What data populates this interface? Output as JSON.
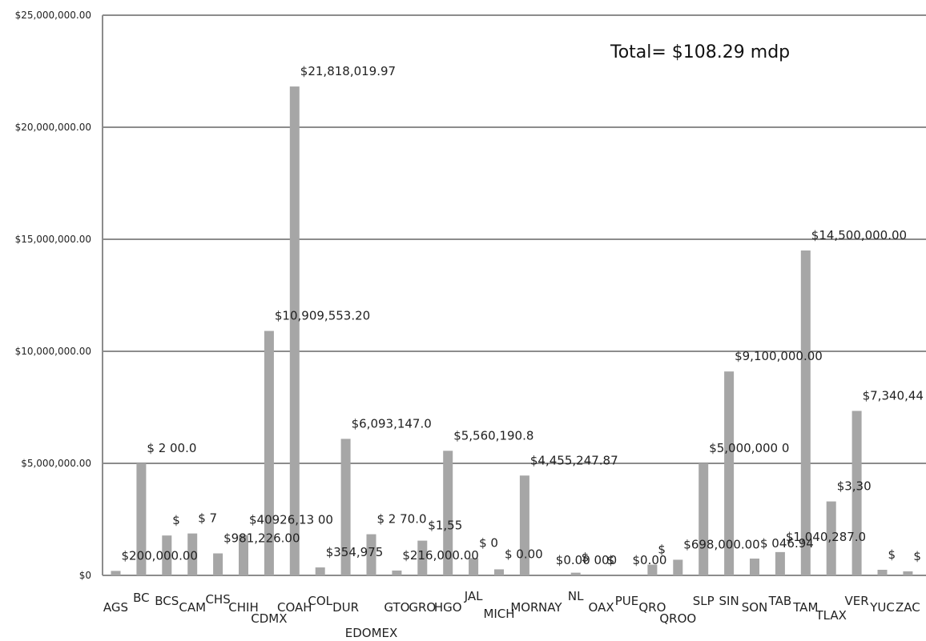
{
  "chart_data": {
    "type": "bar",
    "title": "",
    "xlabel": "",
    "ylabel": "",
    "annotation": "Total= $108.29 mdp",
    "ylim": [
      0,
      25000000
    ],
    "grid": true,
    "y_tick_labels": [
      "$0",
      "$5,000,000.00",
      "$10,000,000.00",
      "$15,000,000.00",
      "$20,000,000.00",
      "$25,000,000.00"
    ],
    "categories": [
      "AGS",
      "BC",
      "BCS",
      "CAM",
      "CHS",
      "CHIH",
      "CDMX",
      "COAH",
      "COL",
      "DUR",
      "EDOMEX",
      "GTO",
      "GRO",
      "HGO",
      "JAL",
      "MICH",
      "MOR",
      "NAY",
      "NL",
      "OAX",
      "PUE",
      "QRO",
      "QROO",
      "SLP",
      "SIN",
      "SON",
      "TAB",
      "TAM",
      "TLAX",
      "VER",
      "YUC",
      "ZAC"
    ],
    "values": [
      200000,
      5000000,
      1780000,
      1870000,
      981226,
      1800000,
      10909553.2,
      21818019.97,
      354975,
      6093147.0,
      1836000,
      216000,
      1550000,
      5560190.8,
      770000,
      270000,
      4455247.87,
      0,
      120000,
      0,
      0,
      480000,
      698000,
      5000000,
      9100000,
      750000,
      1040287.0,
      14500000,
      3300000,
      7340440,
      250000,
      180000
    ],
    "data_labels": [
      {
        "text": "$200,000.00"
      },
      {
        "text": "$ 2 00.0"
      },
      {
        "text": "$"
      },
      {
        "text": "$ 7"
      },
      {
        "text": "$981,226.00"
      },
      {
        "text": "$40926,13 00"
      },
      {
        "text": "$10,909,553.20"
      },
      {
        "text": "$21,818,019.97"
      },
      {
        "text": "$354,975"
      },
      {
        "text": "$6,093,147.0"
      },
      {
        "text": "$ 2 70.0"
      },
      {
        "text": "$216,000.00"
      },
      {
        "text": "$1,55"
      },
      {
        "text": "$5,560,190.8"
      },
      {
        "text": "$ 0"
      },
      {
        "text": "$ 0.00"
      },
      {
        "text": "$4,455,247.87"
      },
      {
        "text": "$0.00 000"
      },
      {
        "text": "$"
      },
      {
        "text": "$"
      },
      {
        "text": "$0.00"
      },
      {
        "text": "$"
      },
      {
        "text": "$698,000.00"
      },
      {
        "text": "$5,000,000 0"
      },
      {
        "text": "$9,100,000.00"
      },
      {
        "text": "$ 046.94"
      },
      {
        "text": "$1,040,287.0"
      },
      {
        "text": "$14,500,000.00"
      },
      {
        "text": "$3,30"
      },
      {
        "text": "$7,340,44"
      },
      {
        "text": "$"
      },
      {
        "text": "$"
      }
    ],
    "colors": {
      "bar": "#a6a6a6",
      "grid": "#8c8c8c",
      "axis": "#8c8c8c",
      "text": "#222222"
    }
  }
}
